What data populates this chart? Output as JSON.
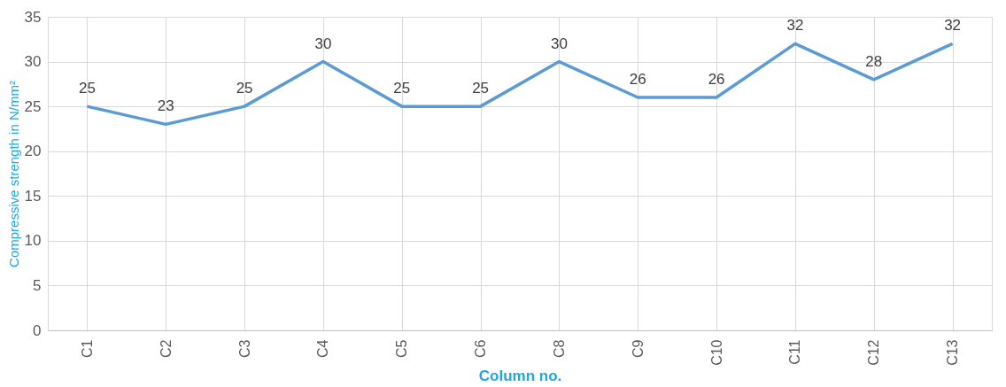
{
  "chart_data": {
    "type": "line",
    "xlabel": "Column no.",
    "ylabel": "Compressive strength in N/mm²",
    "categories": [
      "C1",
      "C2",
      "C3",
      "C4",
      "C5",
      "C6",
      "C8",
      "C9",
      "C10",
      "C11",
      "C12",
      "C13"
    ],
    "series": [
      {
        "color": "#5b9bd5",
        "values": [
          25,
          23,
          25,
          30,
          25,
          25,
          30,
          26,
          26,
          32,
          28,
          32
        ]
      }
    ],
    "ylim": [
      0,
      35
    ],
    "yticks": [
      0,
      5,
      10,
      15,
      20,
      25,
      30,
      35
    ],
    "grid": true,
    "data_labels": true,
    "marker": "none",
    "line_style": "solid"
  }
}
